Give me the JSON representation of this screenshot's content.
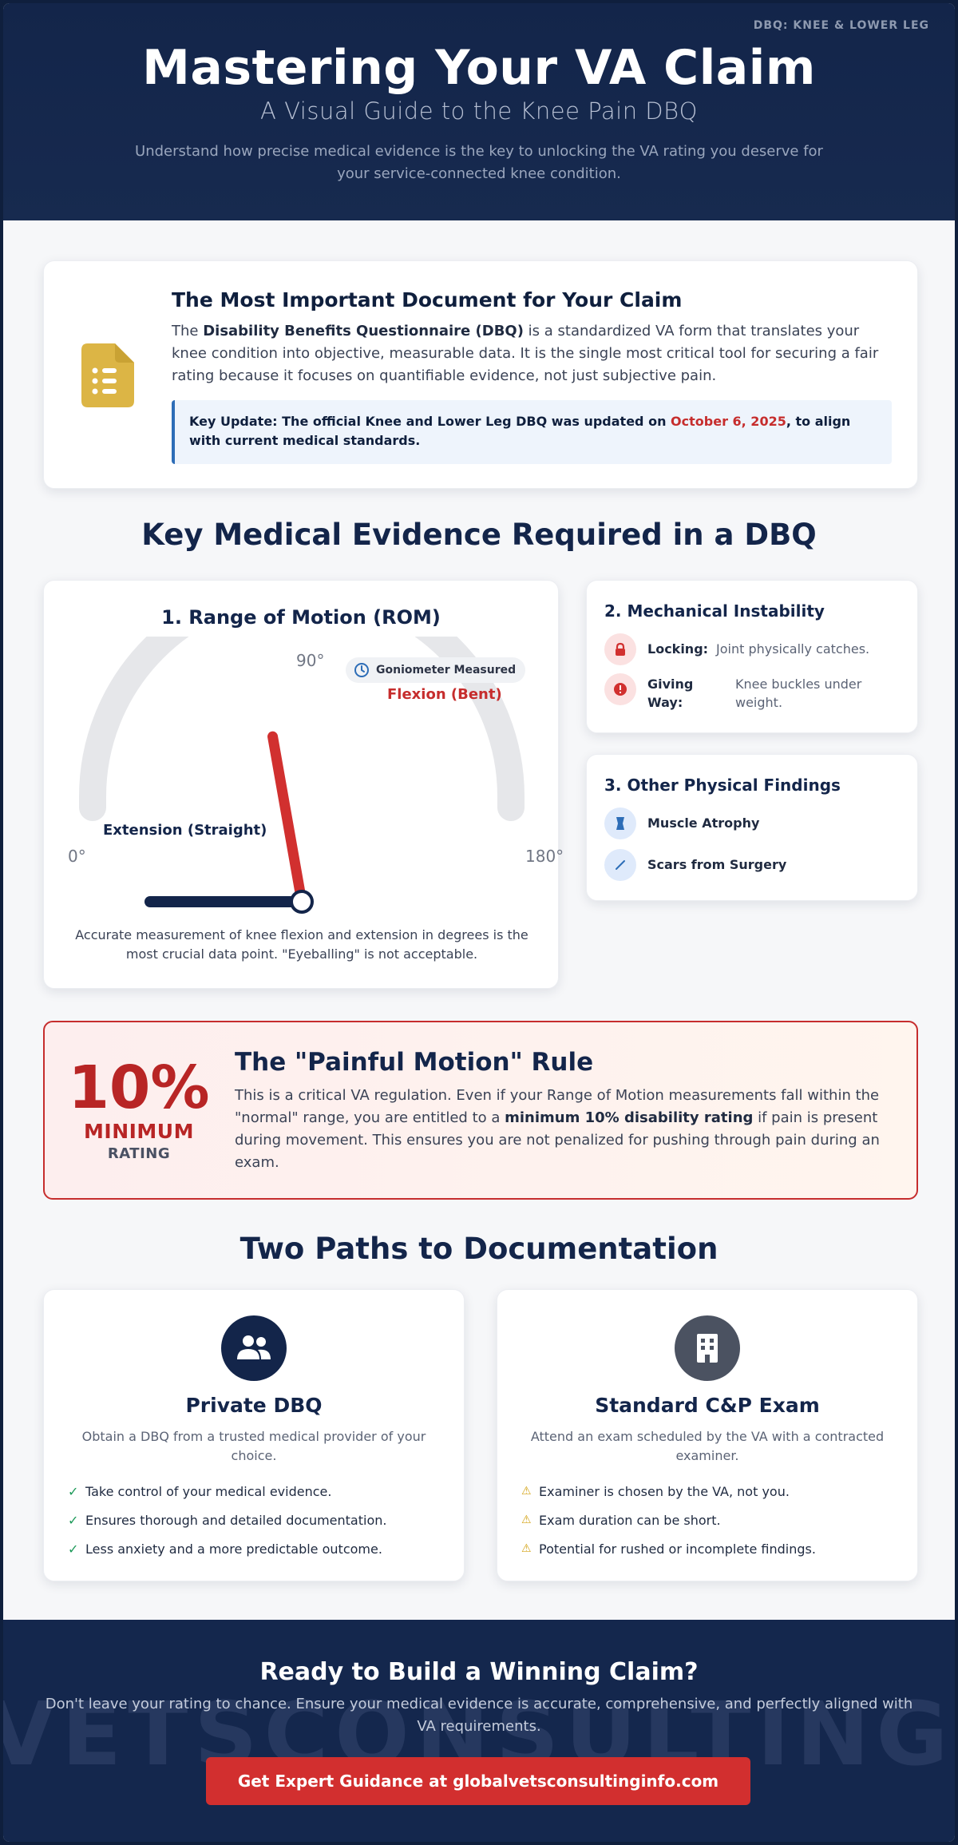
{
  "header": {
    "tag": "DBQ: KNEE & LOWER LEG",
    "title": "Mastering Your VA Claim",
    "subtitle": "A Visual Guide to the Knee Pain DBQ",
    "intro": "Understand how precise medical evidence is the key to unlocking the VA rating you deserve for your service-connected knee condition."
  },
  "dbq_card": {
    "title": "The Most Important Document for Your Claim",
    "body_prefix": "The ",
    "body_bold": "Disability Benefits Questionnaire (DBQ)",
    "body_suffix": " is a standardized VA form that translates your knee condition into objective, measurable data. It is the single most critical tool for securing a fair rating because it focuses on quantifiable evidence, not just subjective pain.",
    "update_prefix": "Key Update: The official Knee and Lower Leg DBQ was updated on ",
    "update_date": "October 6, 2025",
    "update_suffix": ", to align with current medical standards.",
    "icon": "document-list-icon",
    "icon_color": "#dcb545"
  },
  "evidence": {
    "section_title": "Key Medical Evidence Required in a DBQ",
    "rom": {
      "title": "1. Range of Motion (ROM)",
      "deg_0": "0°",
      "deg_90": "90°",
      "deg_180": "180°",
      "pill_label": "Goniometer Measured",
      "flexion_label": "Flexion (Bent)",
      "extension_label": "Extension (Straight)",
      "flexion_angle_deg": 80,
      "extension_angle_deg": 0,
      "caption": "Accurate measurement of knee flexion and extension in degrees is the most crucial data point. \"Eyeballing\" is not acceptable."
    },
    "instability": {
      "title": "2. Mechanical Instability",
      "items": [
        {
          "label": "Locking:",
          "desc": "Joint physically catches.",
          "icon": "lock-icon"
        },
        {
          "label": "Giving Way:",
          "desc": "Knee buckles under weight.",
          "icon": "alert-icon"
        }
      ]
    },
    "other": {
      "title": "3. Other Physical Findings",
      "items": [
        {
          "label": "Muscle Atrophy",
          "icon": "muscle-icon"
        },
        {
          "label": "Scars from Surgery",
          "icon": "scar-icon"
        }
      ]
    }
  },
  "painful_motion": {
    "percent": "10%",
    "minimum": "MINIMUM",
    "rating": "RATING",
    "title": "The \"Painful Motion\" Rule",
    "text_prefix": "This is a critical VA regulation. Even if your Range of Motion measurements fall within the \"normal\" range, you are entitled to a ",
    "text_bold": "minimum 10% disability rating",
    "text_suffix": " if pain is present during movement. This ensures you are not penalized for pushing through pain during an exam."
  },
  "paths": {
    "section_title": "Two Paths to Documentation",
    "private": {
      "title": "Private DBQ",
      "desc": "Obtain a DBQ from a trusted medical provider of your choice.",
      "icon": "users-icon",
      "items": [
        "Take control of your medical evidence.",
        "Ensures thorough and detailed documentation.",
        "Less anxiety and a more predictable outcome."
      ]
    },
    "standard": {
      "title": "Standard C&P Exam",
      "desc": "Attend an exam scheduled by the VA with a contracted examiner.",
      "icon": "building-icon",
      "items": [
        "Examiner is chosen by the VA, not you.",
        "Exam duration can be short.",
        "Potential for rushed or incomplete findings."
      ]
    }
  },
  "footer": {
    "watermark": "VETSCONSULTINGIN",
    "title": "Ready to Build a Winning Claim?",
    "desc": "Don't leave your rating to chance. Ensure your medical evidence is accurate, comprehensive, and perfectly aligned with VA requirements.",
    "cta": "Get Expert Guidance at globalvetsconsultinginfo.com"
  },
  "colors": {
    "navy": "#13254a",
    "red": "#c62d2d",
    "gauge_track": "#e6e7ea"
  }
}
